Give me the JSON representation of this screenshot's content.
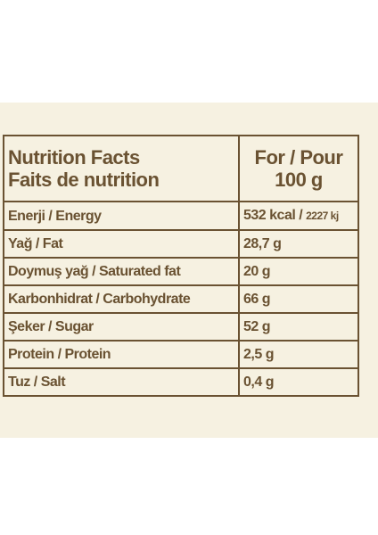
{
  "table": {
    "header": {
      "title_line1": "Nutrition Facts",
      "title_line2": "Faits de nutrition",
      "value_line1": "For / Pour",
      "value_line2": "100 g"
    },
    "rows": [
      {
        "nutrient": "Enerji / Energy",
        "value": "532 kcal /",
        "value_extra": "2227 kj"
      },
      {
        "nutrient": "Yağ / Fat",
        "value": "28,7 g"
      },
      {
        "nutrient": "Doymuş yağ / Saturated fat",
        "value": "20 g"
      },
      {
        "nutrient": "Karbonhidrat / Carbohydrate",
        "value": "66 g"
      },
      {
        "nutrient": "Şeker / Sugar",
        "value": "52 g"
      },
      {
        "nutrient": "Protein / Protein",
        "value": "2,5 g"
      },
      {
        "nutrient": "Tuz / Salt",
        "value": "0,4 g"
      }
    ]
  },
  "colors": {
    "background": "#f6f1e1",
    "text_and_border": "#6a5232"
  }
}
